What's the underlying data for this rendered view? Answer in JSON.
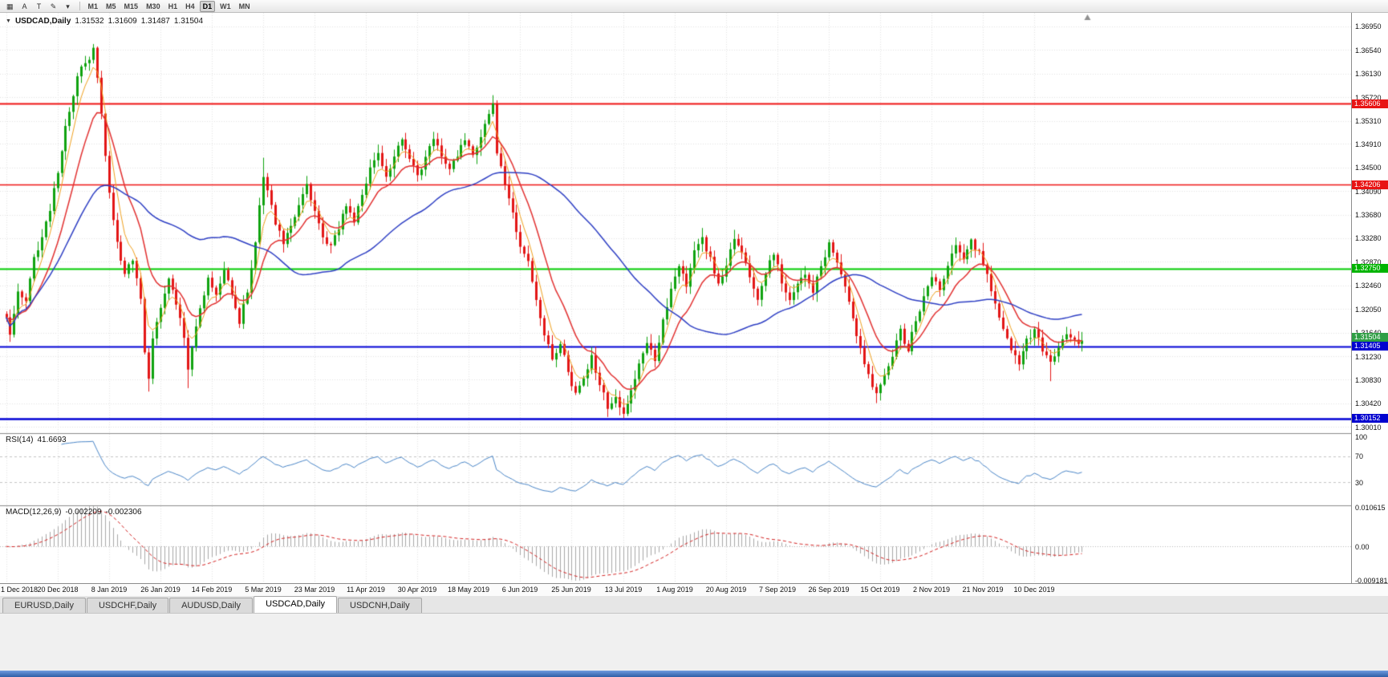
{
  "toolbar": {
    "tools": [
      {
        "name": "chart-window-icon",
        "glyph": "▦"
      },
      {
        "name": "cursor-a-button",
        "label": "A"
      },
      {
        "name": "text-tool-button",
        "label": "T"
      },
      {
        "name": "draw-tool-icon",
        "glyph": "✎"
      },
      {
        "name": "tools-caret-icon",
        "glyph": "▾"
      }
    ],
    "timeframes": [
      {
        "label": "M1"
      },
      {
        "label": "M5"
      },
      {
        "label": "M15"
      },
      {
        "label": "M30"
      },
      {
        "label": "H1"
      },
      {
        "label": "H4"
      },
      {
        "label": "D1",
        "active": true
      },
      {
        "label": "W1"
      },
      {
        "label": "MN"
      }
    ]
  },
  "chart": {
    "title": {
      "marker": "▼",
      "symbol": "USDCAD,Daily",
      "open": "1.31532",
      "high": "1.31609",
      "low": "1.31487",
      "close": "1.31504"
    },
    "y_ticks": [
      "1.36950",
      "1.36540",
      "1.36130",
      "1.35720",
      "1.35310",
      "1.34910",
      "1.34500",
      "1.34090",
      "1.33680",
      "1.33280",
      "1.32870",
      "1.32460",
      "1.32050",
      "1.31640",
      "1.31230",
      "1.30830",
      "1.30420",
      "1.30010"
    ],
    "price_tags": [
      {
        "text": "1.35606",
        "price": 1.35606,
        "bg": "#e81414"
      },
      {
        "text": "1.34206",
        "price": 1.34206,
        "bg": "#e81414"
      },
      {
        "text": "1.32750",
        "price": 1.3275,
        "bg": "#00b400"
      },
      {
        "text": "1.31504",
        "price": 1.31504,
        "bg": "#2f9e44"
      },
      {
        "text": "1.31405",
        "price": 1.31405,
        "bg": "#0202cf"
      },
      {
        "text": "1.30152",
        "price": 1.30152,
        "bg": "#0202cf"
      }
    ]
  },
  "rsi": {
    "label": "RSI(14)",
    "value": "41.6693",
    "ticks": [
      {
        "text": "100",
        "value": 100
      },
      {
        "text": "70",
        "value": 70
      },
      {
        "text": "30",
        "value": 30
      }
    ]
  },
  "macd": {
    "label": "MACD(12,26,9)",
    "value_main": "-0.002209",
    "value_signal": "-0.002306",
    "ticks": [
      {
        "text": "0.010615",
        "value": 0.010615
      },
      {
        "text": "0.00",
        "value": 0
      },
      {
        "text": "-0.009181",
        "value": -0.009181
      }
    ]
  },
  "tabs": [
    {
      "label": "EURUSD,Daily"
    },
    {
      "label": "USDCHF,Daily"
    },
    {
      "label": "AUDUSD,Daily"
    },
    {
      "label": "USDCAD,Daily",
      "active": true
    },
    {
      "label": "USDCNH,Daily"
    }
  ],
  "chart_data": {
    "type": "candlestick",
    "symbol": "USDCAD",
    "period": "Daily",
    "bars": 273,
    "price_range": [
      1.299,
      1.3718
    ],
    "label_every_bars": 13,
    "x_labels": [
      "1 Dec 2018",
      "20 Dec 2018",
      "8 Jan 2019",
      "26 Jan 2019",
      "14 Feb 2019",
      "5 Mar 2019",
      "23 Mar 2019",
      "11 Apr 2019",
      "30 Apr 2019",
      "18 May 2019",
      "6 Jun 2019",
      "25 Jun 2019",
      "13 Jul 2019",
      "1 Aug 2019",
      "20 Aug 2019",
      "7 Sep 2019",
      "26 Sep 2019",
      "15 Oct 2019",
      "2 Nov 2019",
      "21 Nov 2019",
      "10 Dec 2019"
    ],
    "anchors": [
      [
        0,
        1.3185
      ],
      [
        1,
        1.3165
      ],
      [
        3,
        1.324
      ],
      [
        5,
        1.3215
      ],
      [
        7,
        1.329
      ],
      [
        9,
        1.333
      ],
      [
        11,
        1.338
      ],
      [
        13,
        1.3445
      ],
      [
        15,
        1.352
      ],
      [
        17,
        1.3575
      ],
      [
        19,
        1.363
      ],
      [
        21,
        1.364
      ],
      [
        22,
        1.3655
      ],
      [
        23,
        1.36
      ],
      [
        24,
        1.3545
      ],
      [
        25,
        1.347
      ],
      [
        26,
        1.3405
      ],
      [
        28,
        1.332
      ],
      [
        30,
        1.3265
      ],
      [
        32,
        1.329
      ],
      [
        34,
        1.322
      ],
      [
        35,
        1.313
      ],
      [
        36,
        1.309
      ],
      [
        37,
        1.3155
      ],
      [
        39,
        1.321
      ],
      [
        41,
        1.3255
      ],
      [
        43,
        1.3215
      ],
      [
        45,
        1.3155
      ],
      [
        46,
        1.3105
      ],
      [
        47,
        1.314
      ],
      [
        49,
        1.3205
      ],
      [
        51,
        1.3255
      ],
      [
        53,
        1.3225
      ],
      [
        55,
        1.3275
      ],
      [
        57,
        1.3235
      ],
      [
        59,
        1.3185
      ],
      [
        61,
        1.3235
      ],
      [
        63,
        1.332
      ],
      [
        64,
        1.338
      ],
      [
        65,
        1.3435
      ],
      [
        66,
        1.3415
      ],
      [
        68,
        1.3355
      ],
      [
        70,
        1.332
      ],
      [
        72,
        1.335
      ],
      [
        74,
        1.3385
      ],
      [
        76,
        1.342
      ],
      [
        78,
        1.3375
      ],
      [
        80,
        1.3335
      ],
      [
        82,
        1.331
      ],
      [
        84,
        1.3345
      ],
      [
        86,
        1.3385
      ],
      [
        88,
        1.336
      ],
      [
        90,
        1.3405
      ],
      [
        92,
        1.3445
      ],
      [
        94,
        1.3475
      ],
      [
        96,
        1.343
      ],
      [
        98,
        1.3465
      ],
      [
        100,
        1.35
      ],
      [
        102,
        1.347
      ],
      [
        104,
        1.3435
      ],
      [
        106,
        1.3465
      ],
      [
        108,
        1.3505
      ],
      [
        110,
        1.3475
      ],
      [
        112,
        1.3445
      ],
      [
        114,
        1.347
      ],
      [
        116,
        1.35
      ],
      [
        118,
        1.3475
      ],
      [
        120,
        1.3505
      ],
      [
        122,
        1.3545
      ],
      [
        123,
        1.3555
      ],
      [
        124,
        1.348
      ],
      [
        126,
        1.3425
      ],
      [
        128,
        1.337
      ],
      [
        130,
        1.3315
      ],
      [
        132,
        1.3285
      ],
      [
        134,
        1.3225
      ],
      [
        136,
        1.3165
      ],
      [
        138,
        1.3115
      ],
      [
        140,
        1.3145
      ],
      [
        142,
        1.3095
      ],
      [
        144,
        1.3055
      ],
      [
        146,
        1.3085
      ],
      [
        148,
        1.3125
      ],
      [
        150,
        1.3075
      ],
      [
        152,
        1.3035
      ],
      [
        154,
        1.3055
      ],
      [
        156,
        1.3025
      ],
      [
        158,
        1.3065
      ],
      [
        160,
        1.311
      ],
      [
        162,
        1.315
      ],
      [
        164,
        1.312
      ],
      [
        166,
        1.3185
      ],
      [
        168,
        1.3235
      ],
      [
        170,
        1.3285
      ],
      [
        172,
        1.3245
      ],
      [
        174,
        1.331
      ],
      [
        176,
        1.333
      ],
      [
        178,
        1.329
      ],
      [
        180,
        1.3245
      ],
      [
        182,
        1.3285
      ],
      [
        184,
        1.3325
      ],
      [
        186,
        1.33
      ],
      [
        188,
        1.326
      ],
      [
        190,
        1.3225
      ],
      [
        192,
        1.327
      ],
      [
        194,
        1.33
      ],
      [
        196,
        1.3255
      ],
      [
        198,
        1.3215
      ],
      [
        200,
        1.3245
      ],
      [
        202,
        1.327
      ],
      [
        204,
        1.3235
      ],
      [
        206,
        1.328
      ],
      [
        208,
        1.332
      ],
      [
        210,
        1.329
      ],
      [
        212,
        1.3245
      ],
      [
        214,
        1.3185
      ],
      [
        216,
        1.3135
      ],
      [
        218,
        1.3095
      ],
      [
        220,
        1.3055
      ],
      [
        222,
        1.3085
      ],
      [
        224,
        1.3125
      ],
      [
        226,
        1.3165
      ],
      [
        228,
        1.3135
      ],
      [
        230,
        1.3185
      ],
      [
        232,
        1.3225
      ],
      [
        234,
        1.3265
      ],
      [
        236,
        1.3235
      ],
      [
        238,
        1.3285
      ],
      [
        240,
        1.331
      ],
      [
        242,
        1.329
      ],
      [
        244,
        1.332
      ],
      [
        246,
        1.33
      ],
      [
        248,
        1.3265
      ],
      [
        250,
        1.3215
      ],
      [
        252,
        1.3165
      ],
      [
        254,
        1.3135
      ],
      [
        256,
        1.3115
      ],
      [
        258,
        1.315
      ],
      [
        260,
        1.317
      ],
      [
        262,
        1.313
      ],
      [
        264,
        1.3108
      ],
      [
        266,
        1.314
      ],
      [
        268,
        1.3162
      ],
      [
        270,
        1.3148
      ],
      [
        272,
        1.31504
      ]
    ],
    "wick_overrides": [
      {
        "i": 22,
        "high": 1.3664
      },
      {
        "i": 36,
        "low": 1.3062
      },
      {
        "i": 46,
        "low": 1.3068
      },
      {
        "i": 65,
        "high": 1.3467
      },
      {
        "i": 123,
        "high": 1.3561
      },
      {
        "i": 152,
        "low": 1.3018
      },
      {
        "i": 156,
        "low": 1.3016
      },
      {
        "i": 220,
        "low": 1.3042
      },
      {
        "i": 264,
        "low": 1.308
      }
    ],
    "h_lines": [
      {
        "price": 1.35606,
        "color": "#f01414",
        "width": 2
      },
      {
        "price": 1.34206,
        "color": "#f01414",
        "width": 1.5
      },
      {
        "price": 1.3275,
        "color": "#00cc00",
        "width": 2
      },
      {
        "price": 1.31405,
        "color": "#0202d6",
        "width": 2
      },
      {
        "price": 1.30152,
        "color": "#0202d6",
        "width": 2.5
      }
    ],
    "moving_averages": [
      {
        "period": 5,
        "method": "ema",
        "color": "#f0a11e",
        "width": 1
      },
      {
        "period": 13,
        "method": "ema",
        "color": "#e23030",
        "width": 1.5
      },
      {
        "period": 50,
        "method": "sma",
        "color": "#2e3fc4",
        "width": 1.5
      }
    ],
    "colors": {
      "up": "#10a310",
      "down": "#e31616",
      "rsi_line": "#4a86c8",
      "rsi_levels": "#c4c4c4",
      "macd_hist": "#a8a8a8",
      "macd_signal": "#d42020",
      "grid": "#e3e3e3",
      "separator": "#8c8c8c"
    },
    "rsi": {
      "period": 14,
      "levels": [
        70,
        30
      ],
      "range": [
        0,
        100
      ]
    },
    "macd": {
      "fast": 12,
      "slow": 26,
      "signal": 9,
      "range": [
        -0.01,
        0.0112
      ]
    }
  }
}
